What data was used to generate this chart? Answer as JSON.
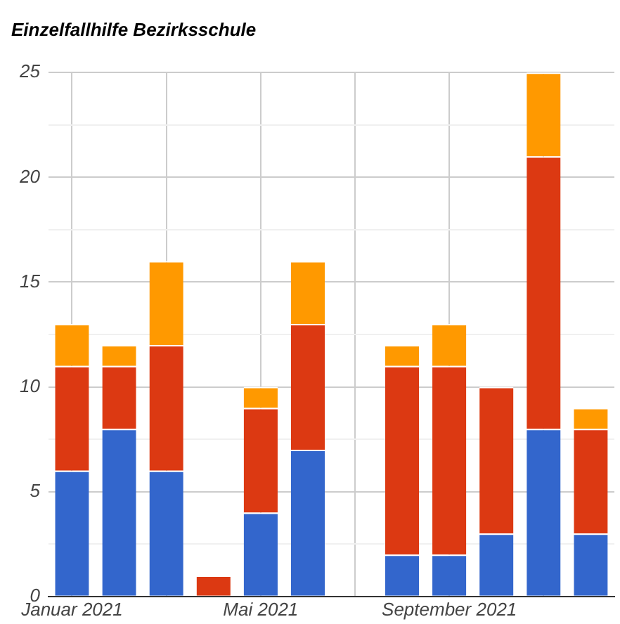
{
  "chart_data": {
    "type": "bar",
    "title": "Einzelfallhilfe Bezirksschule",
    "stacked": true,
    "categories": [
      "Januar 2021",
      null,
      null,
      null,
      "Mai 2021",
      null,
      null,
      null,
      "September 2021",
      null,
      null,
      null
    ],
    "series": [
      {
        "color": "#3366cc",
        "values": [
          6,
          8,
          6,
          0,
          4,
          7,
          0,
          2,
          2,
          3,
          8,
          3
        ]
      },
      {
        "color": "#dc3912",
        "values": [
          5,
          3,
          6,
          1,
          5,
          6,
          0,
          9,
          9,
          7,
          13,
          5
        ]
      },
      {
        "color": "#ff9900",
        "values": [
          2,
          1,
          4,
          0,
          1,
          3,
          0,
          1,
          2,
          0,
          4,
          1
        ]
      }
    ],
    "ylim": [
      0,
      25
    ],
    "yticks": [
      0,
      {
        "value": 2.5,
        "label": null
      },
      5,
      {
        "value": 7.5,
        "label": null
      },
      10,
      {
        "value": 12.5,
        "label": null
      },
      15,
      {
        "value": 17.5,
        "label": null
      },
      20,
      {
        "value": 22.5,
        "label": null
      },
      25
    ],
    "grid": true,
    "legend": false
  }
}
